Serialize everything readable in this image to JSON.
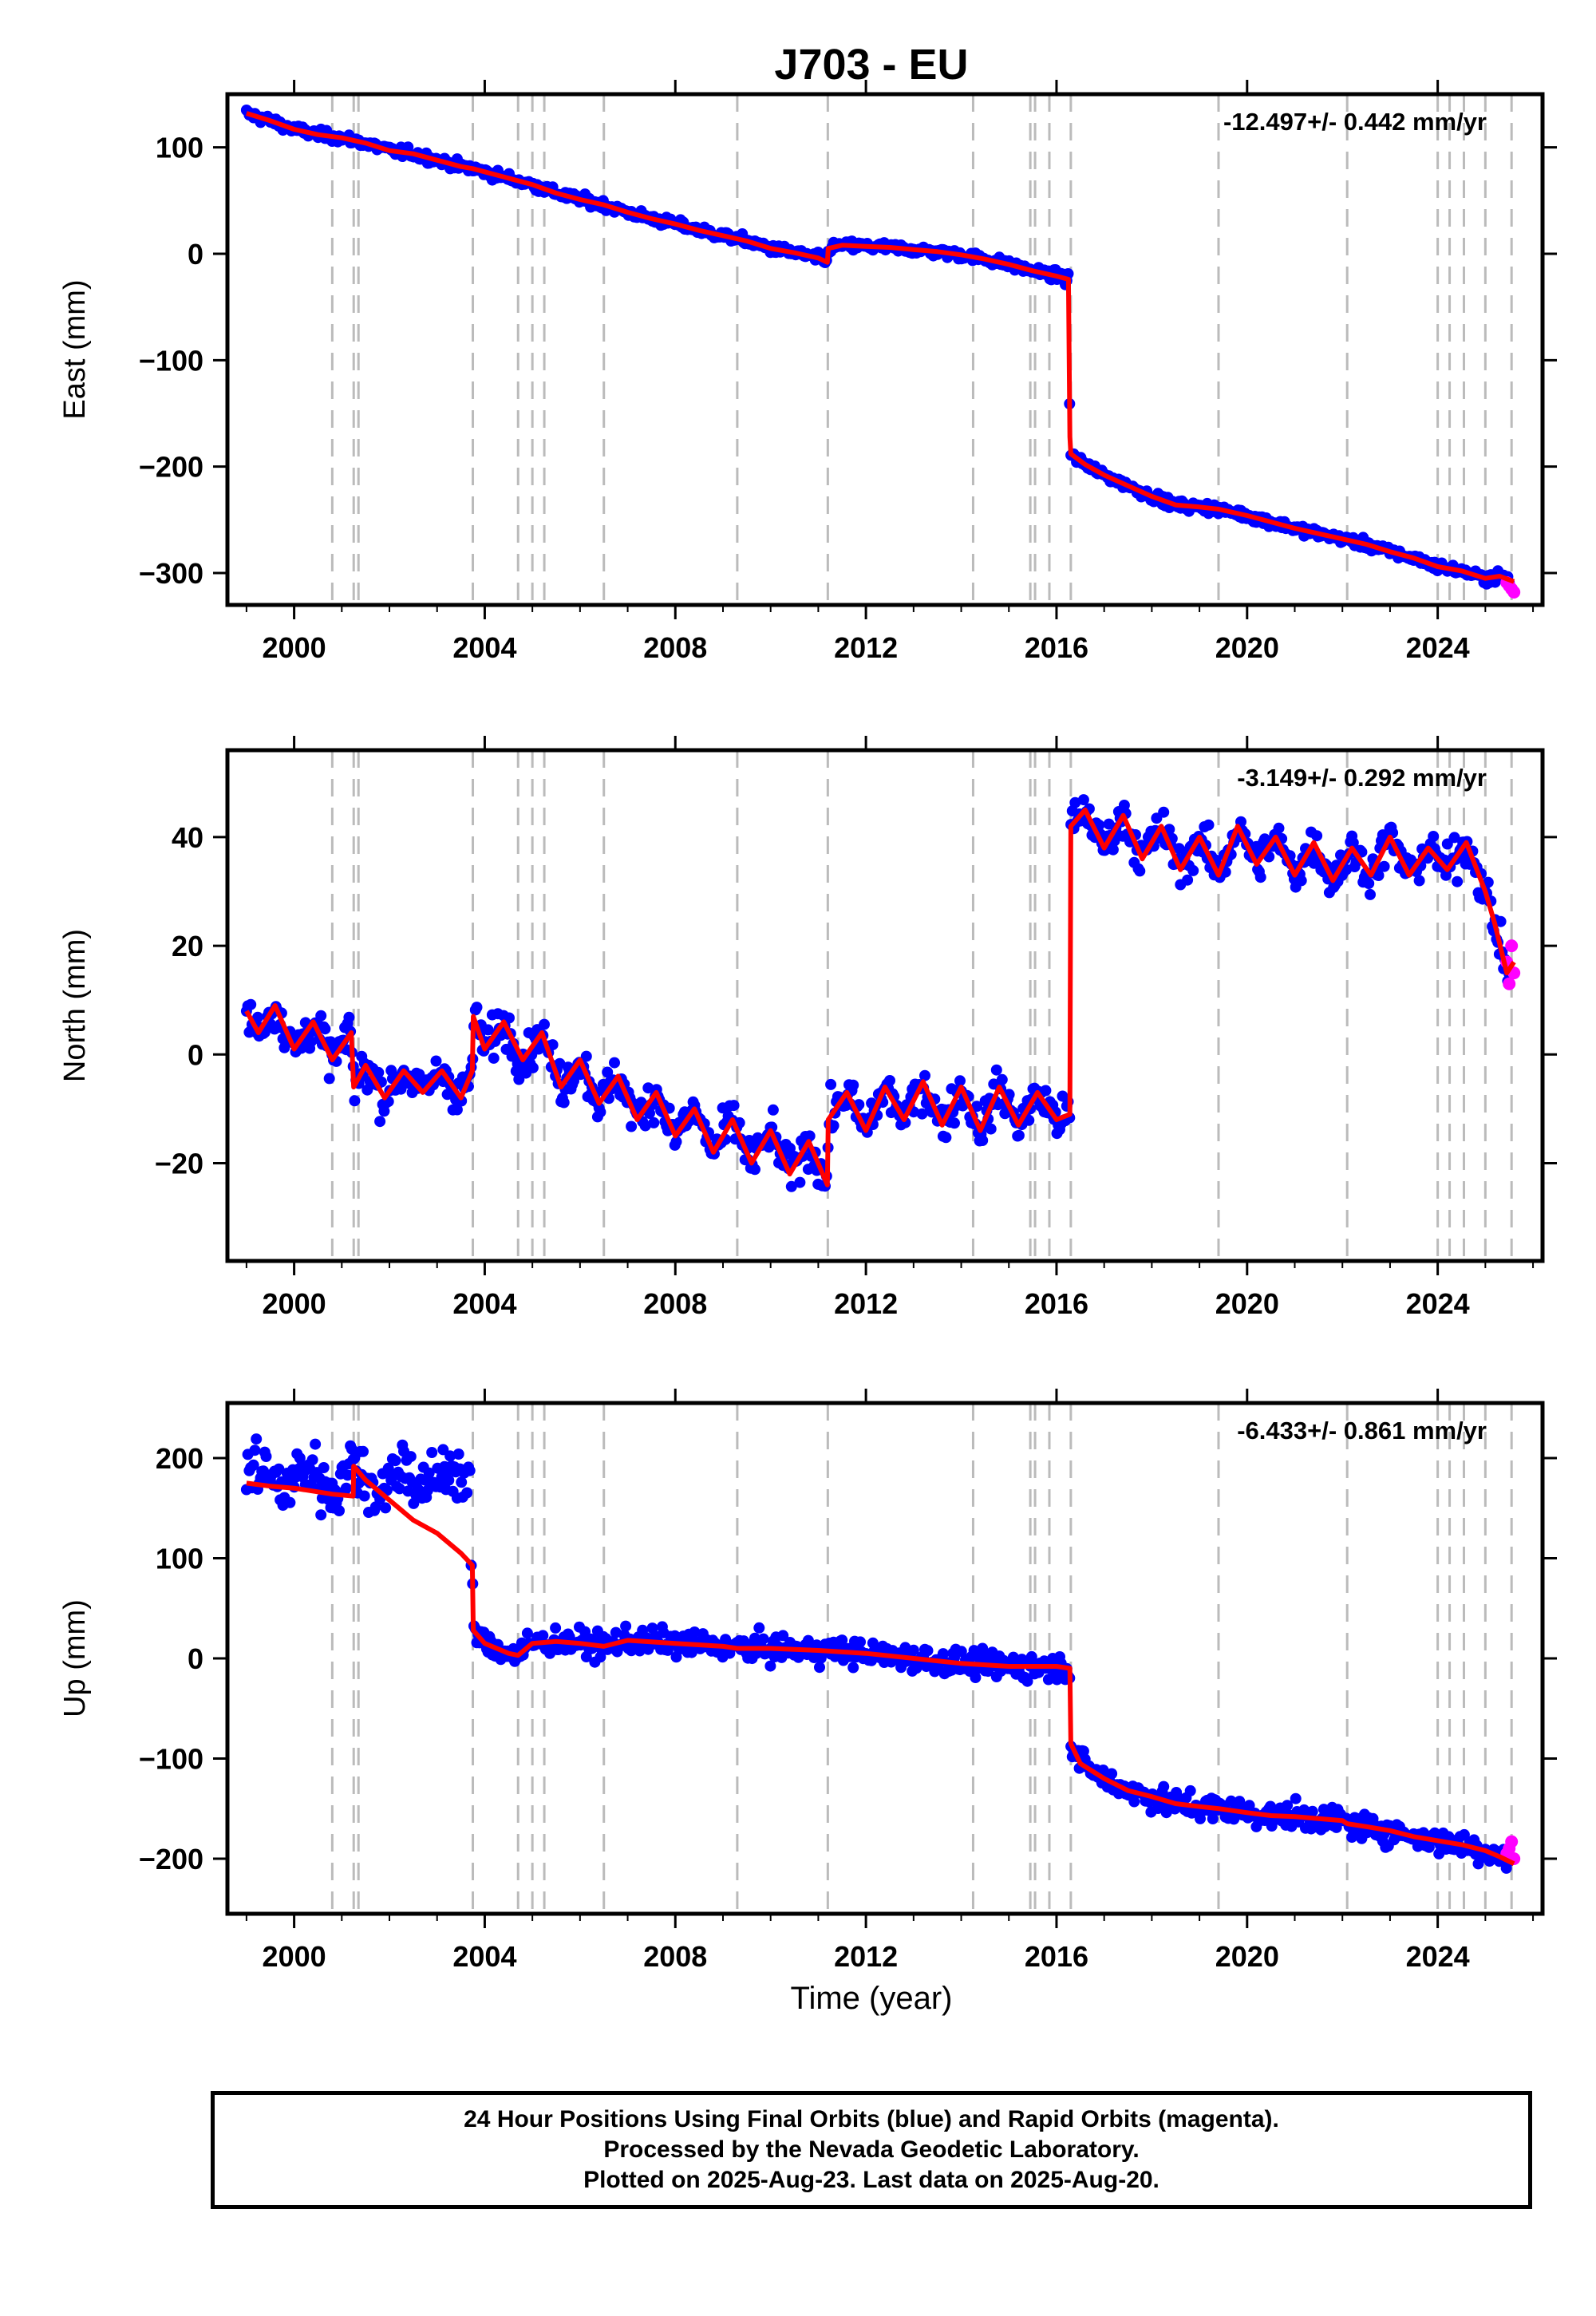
{
  "title": "J703 - EU",
  "xlabel": "Time (year)",
  "footer": {
    "line1": "24 Hour Positions Using Final Orbits (blue) and Rapid Orbits (magenta).",
    "line2": "Processed by the Nevada Geodetic Laboratory.",
    "line3": "Plotted on 2025-Aug-23. Last data on 2025-Aug-20."
  },
  "colors": {
    "final_orbits": "#0000ff",
    "rapid_orbits": "#ff00ff",
    "model": "#ff0000",
    "event_lines": "#bbbbbb"
  },
  "chart_data": [
    {
      "type": "scatter",
      "panel": "east",
      "ylabel": "East (mm)",
      "rate": "-12.497+/- 0.442 mm/yr",
      "xlim": [
        1998.6,
        2026.2
      ],
      "ylim": [
        -330,
        150
      ],
      "xticks": [
        2000,
        2004,
        2008,
        2012,
        2016,
        2020,
        2024
      ],
      "yticks": [
        -300,
        -200,
        -100,
        0,
        100
      ],
      "grid": false,
      "event_lines": [
        2000.8,
        2001.25,
        2001.35,
        2003.75,
        2004.7,
        2005.0,
        2005.25,
        2006.5,
        2009.3,
        2011.2,
        2014.25,
        2015.45,
        2015.55,
        2015.85,
        2016.3,
        2019.4,
        2022.1,
        2024.0,
        2024.25,
        2024.55,
        2025.0,
        2025.55
      ],
      "series": [
        {
          "role": "model",
          "x": [
            1999.0,
            1999.5,
            2000.0,
            2000.5,
            2001.0,
            2001.5,
            2002.0,
            2002.5,
            2003.0,
            2003.5,
            2003.75,
            2004.0,
            2004.5,
            2005.0,
            2005.5,
            2006.0,
            2006.5,
            2007.0,
            2007.5,
            2008.0,
            2008.5,
            2009.0,
            2009.5,
            2010.0,
            2010.5,
            2011.0,
            2011.19,
            2011.21,
            2011.5,
            2012.0,
            2012.5,
            2013.0,
            2013.5,
            2014.0,
            2014.5,
            2015.0,
            2015.5,
            2016.0,
            2016.25,
            2016.28,
            2016.3,
            2016.6,
            2017.0,
            2017.5,
            2018.0,
            2018.5,
            2019.0,
            2019.4,
            2019.5,
            2020.0,
            2020.5,
            2021.0,
            2021.5,
            2022.0,
            2022.5,
            2023.0,
            2023.5,
            2024.0,
            2024.5,
            2025.0,
            2025.3,
            2025.6
          ],
          "y": [
            132,
            125,
            117,
            112,
            109,
            104,
            97,
            94,
            88,
            82,
            80,
            77,
            71,
            65,
            57,
            51,
            46,
            39,
            33,
            28,
            22,
            17,
            12,
            5,
            1,
            -4,
            -8,
            5,
            8,
            7,
            6,
            4,
            2,
            -1,
            -5,
            -10,
            -16,
            -21,
            -24,
            -172,
            -188,
            -198,
            -208,
            -218,
            -228,
            -236,
            -238,
            -240,
            -241,
            -246,
            -252,
            -258,
            -263,
            -268,
            -273,
            -280,
            -286,
            -294,
            -298,
            -305,
            -303,
            -308
          ]
        },
        {
          "role": "rapid",
          "x": [
            2025.45,
            2025.5,
            2025.55,
            2025.6
          ],
          "y": [
            -309,
            -312,
            -315,
            -318
          ]
        }
      ]
    },
    {
      "type": "scatter",
      "panel": "north",
      "ylabel": "North (mm)",
      "rate": "-3.149+/- 0.292 mm/yr",
      "xlim": [
        1998.6,
        2026.2
      ],
      "ylim": [
        -38,
        56
      ],
      "xticks": [
        2000,
        2004,
        2008,
        2012,
        2016,
        2020,
        2024
      ],
      "yticks": [
        -20,
        0,
        20,
        40
      ],
      "grid": false,
      "event_lines": [
        2000.8,
        2001.25,
        2001.35,
        2003.75,
        2004.7,
        2005.0,
        2005.25,
        2006.5,
        2009.3,
        2011.2,
        2014.25,
        2015.45,
        2015.55,
        2015.85,
        2016.3,
        2019.4,
        2022.1,
        2024.0,
        2024.25,
        2024.55,
        2025.0,
        2025.55
      ],
      "series": [
        {
          "role": "model",
          "x": [
            1999.0,
            1999.25,
            1999.6,
            2000.0,
            2000.4,
            2000.8,
            2001.2,
            2001.25,
            2001.5,
            2001.9,
            2002.3,
            2002.7,
            2003.1,
            2003.5,
            2003.74,
            2003.76,
            2004.0,
            2004.4,
            2004.8,
            2005.2,
            2005.6,
            2006.0,
            2006.4,
            2006.8,
            2007.2,
            2007.6,
            2008.0,
            2008.4,
            2008.8,
            2009.2,
            2009.6,
            2010.0,
            2010.4,
            2010.8,
            2011.19,
            2011.21,
            2011.6,
            2012.0,
            2012.4,
            2012.8,
            2013.2,
            2013.6,
            2014.0,
            2014.4,
            2014.8,
            2015.2,
            2015.6,
            2016.0,
            2016.28,
            2016.3,
            2016.6,
            2017.0,
            2017.4,
            2017.8,
            2018.2,
            2018.6,
            2019.0,
            2019.4,
            2019.8,
            2020.2,
            2020.6,
            2021.0,
            2021.4,
            2021.8,
            2022.2,
            2022.6,
            2023.0,
            2023.4,
            2023.8,
            2024.2,
            2024.6,
            2025.0,
            2025.2,
            2025.45,
            2025.6
          ],
          "y": [
            8,
            4,
            9,
            1,
            6,
            -1,
            4,
            -6,
            -2,
            -8,
            -3,
            -7,
            -3,
            -8,
            -3,
            7,
            1,
            6,
            -1,
            4,
            -6,
            -1,
            -9,
            -4,
            -12,
            -7,
            -15,
            -10,
            -18,
            -12,
            -20,
            -14,
            -22,
            -16,
            -24,
            -12,
            -7,
            -14,
            -6,
            -12,
            -5,
            -13,
            -6,
            -14,
            -6,
            -13,
            -7,
            -12,
            -11,
            42,
            45,
            38,
            44,
            36,
            42,
            34,
            40,
            33,
            42,
            35,
            40,
            33,
            39,
            32,
            38,
            33,
            40,
            33,
            38,
            34,
            39,
            30,
            24,
            15,
            17
          ]
        },
        {
          "role": "rapid",
          "x": [
            2025.45,
            2025.5,
            2025.55,
            2025.6
          ],
          "y": [
            17,
            13,
            20,
            15
          ]
        }
      ]
    },
    {
      "type": "scatter",
      "panel": "up",
      "ylabel": "Up (mm)",
      "rate": "-6.433+/- 0.861 mm/yr",
      "xlim": [
        1998.6,
        2026.2
      ],
      "ylim": [
        -255,
        255
      ],
      "xticks": [
        2000,
        2004,
        2008,
        2012,
        2016,
        2020,
        2024
      ],
      "yticks": [
        -200,
        -100,
        0,
        100,
        200
      ],
      "grid": false,
      "event_lines": [
        2000.8,
        2001.25,
        2001.35,
        2003.75,
        2004.7,
        2005.0,
        2005.25,
        2006.5,
        2009.3,
        2011.2,
        2014.25,
        2015.45,
        2015.55,
        2015.85,
        2016.3,
        2019.4,
        2022.1,
        2024.0,
        2024.25,
        2024.55,
        2025.0,
        2025.55
      ],
      "series": [
        {
          "role": "model",
          "x": [
            1999.0,
            1999.5,
            2000.0,
            2000.8,
            2001.24,
            2001.25,
            2001.5,
            2002.0,
            2002.5,
            2003.0,
            2003.5,
            2003.74,
            2003.76,
            2004.0,
            2004.5,
            2004.7,
            2005.0,
            2005.5,
            2006.0,
            2006.5,
            2007.0,
            2008.0,
            2009.0,
            2009.3,
            2010.0,
            2011.0,
            2012.0,
            2013.0,
            2014.0,
            2015.0,
            2016.0,
            2016.28,
            2016.3,
            2016.5,
            2017.0,
            2017.5,
            2018.0,
            2018.5,
            2019.0,
            2019.4,
            2020.0,
            2020.5,
            2021.0,
            2021.5,
            2022.0,
            2022.1,
            2022.5,
            2023.0,
            2023.5,
            2024.0,
            2024.5,
            2025.0,
            2025.3,
            2025.6
          ],
          "y": [
            175,
            172,
            170,
            164,
            162,
            192,
            178,
            158,
            138,
            125,
            105,
            93,
            28,
            15,
            5,
            3,
            15,
            17,
            15,
            12,
            18,
            15,
            12,
            10,
            10,
            8,
            5,
            0,
            -5,
            -8,
            -8,
            -10,
            -85,
            -105,
            -120,
            -132,
            -138,
            -145,
            -148,
            -150,
            -154,
            -157,
            -158,
            -160,
            -162,
            -165,
            -168,
            -172,
            -178,
            -182,
            -186,
            -192,
            -198,
            -205
          ]
        },
        {
          "role": "rapid",
          "x": [
            2025.45,
            2025.5,
            2025.55,
            2025.6
          ],
          "y": [
            -195,
            -190,
            -183,
            -200
          ]
        }
      ]
    }
  ]
}
